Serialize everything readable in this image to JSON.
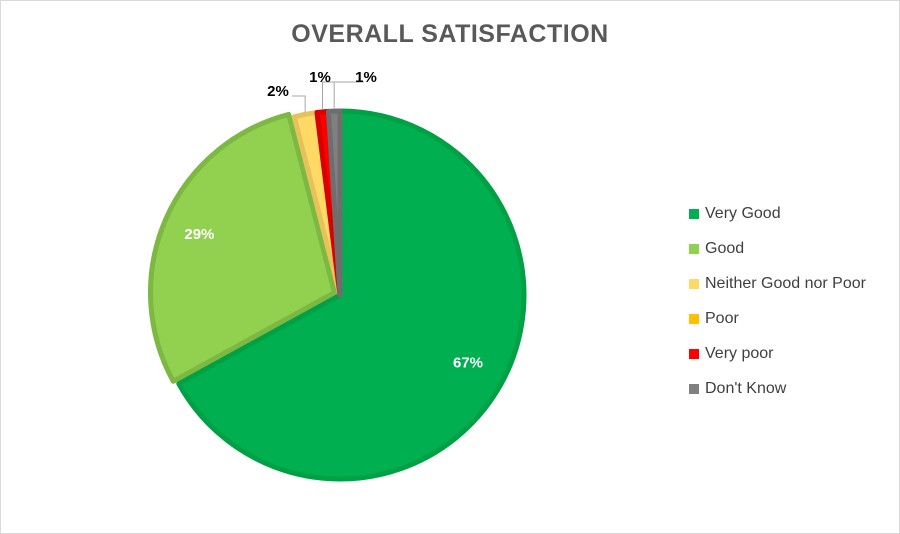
{
  "chart_data": {
    "type": "pie",
    "title": "OVERALL SATISFACTION",
    "legend_position": "right",
    "slices": [
      {
        "label": "Very Good",
        "value": 67,
        "data_label": "67%",
        "color": "#00b050",
        "border": "#00a045"
      },
      {
        "label": "Good",
        "value": 29,
        "data_label": "29%",
        "color": "#92d050",
        "border": "#7cb842"
      },
      {
        "label": "Neither Good nor Poor",
        "value": 2,
        "data_label": "2%",
        "color": "#ffd966",
        "border": "#e6c25a"
      },
      {
        "label": "Poor",
        "value": 0,
        "data_label": "",
        "color": "#ffc000",
        "border": "#e6ad00"
      },
      {
        "label": "Very poor",
        "value": 1,
        "data_label": "1%",
        "color": "#ff0000",
        "border": "#d90000"
      },
      {
        "label": "Don't Know",
        "value": 1,
        "data_label": "1%",
        "color": "#808080",
        "border": "#6e6e6e"
      }
    ]
  }
}
